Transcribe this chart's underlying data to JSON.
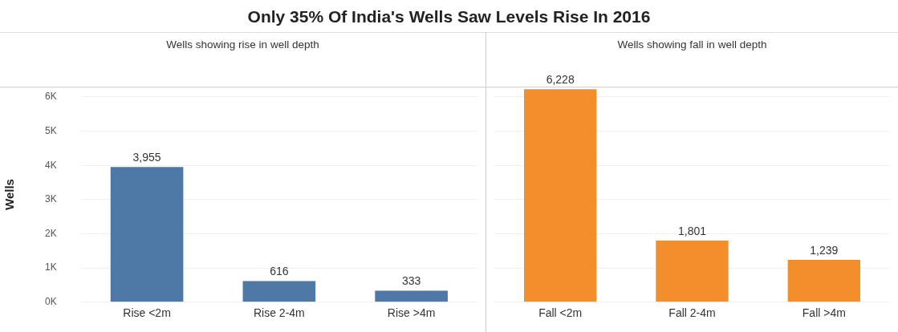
{
  "chart_data": [
    {
      "type": "bar",
      "title": "Only 35% Of India's Wells Saw Levels Rise In 2016",
      "subtitle": "Wells showing rise in well depth",
      "ylabel": "Wells",
      "categories": [
        "Rise <2m",
        "Rise 2-4m",
        "Rise >4m"
      ],
      "values": [
        3955,
        616,
        333
      ],
      "color": "#4e79a7",
      "value_labels": [
        "3,955",
        "616",
        "333"
      ],
      "ylim": [
        0,
        6300
      ],
      "yticks": [
        {
          "value": 0,
          "label": "0K"
        },
        {
          "value": 1000,
          "label": "1K"
        },
        {
          "value": 2000,
          "label": "2K"
        },
        {
          "value": 3000,
          "label": "3K"
        },
        {
          "value": 4000,
          "label": "4K"
        },
        {
          "value": 5000,
          "label": "5K"
        },
        {
          "value": 6000,
          "label": "6K"
        }
      ],
      "grid": "y",
      "legend": false
    },
    {
      "type": "bar",
      "subtitle": "Wells showing fall in well depth",
      "categories": [
        "Fall <2m",
        "Fall 2-4m",
        "Fall >4m"
      ],
      "values": [
        6228,
        1801,
        1239
      ],
      "color": "#f28e2b",
      "value_labels": [
        "6,228",
        "1,801",
        "1,239"
      ],
      "ylim": [
        0,
        6300
      ],
      "yticks": [
        0,
        1000,
        2000,
        3000,
        4000,
        5000,
        6000
      ],
      "grid": "y",
      "legend": false,
      "tick_labels": "x"
    }
  ]
}
